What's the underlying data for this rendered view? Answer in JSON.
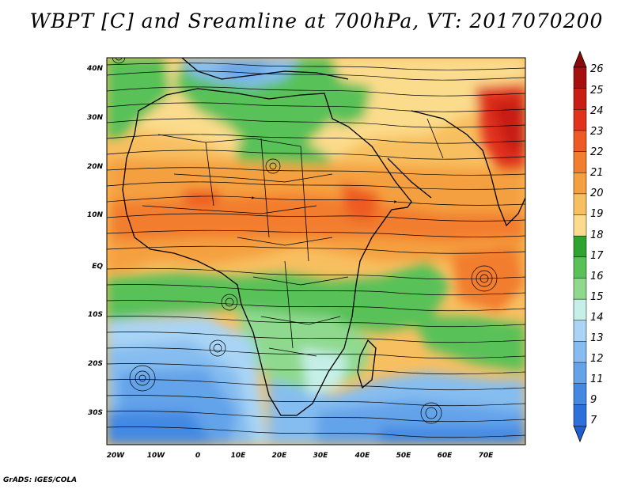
{
  "title": "WBPT [C] and Sreamline at 700hPa, VT: 2017070200",
  "credit": "GrADS: IGES/COLA",
  "lat_labels": [
    "40N",
    "30N",
    "20N",
    "10N",
    "EQ",
    "10S",
    "20S",
    "30S"
  ],
  "lon_labels": [
    "20W",
    "10W",
    "0",
    "10E",
    "20E",
    "30E",
    "40E",
    "50E",
    "60E",
    "70E"
  ],
  "colorbar": {
    "labels": [
      "26",
      "25",
      "24",
      "23",
      "22",
      "21",
      "20",
      "19",
      "18",
      "17",
      "16",
      "15",
      "14",
      "13",
      "12",
      "11",
      "9",
      "7"
    ],
    "colors": [
      "#a50f0f",
      "#c81e14",
      "#e0321c",
      "#ee5a22",
      "#f27d2e",
      "#f5a040",
      "#f8bf60",
      "#fbdb8c",
      "#2fa32f",
      "#58c158",
      "#8fd98f",
      "#c6efe7",
      "#a9d4f5",
      "#86bdf0",
      "#64a3ea",
      "#4389e3",
      "#2b70db"
    ]
  },
  "map": {
    "lon_range": [
      -21,
      80
    ],
    "lat_range": [
      -36,
      45
    ]
  }
}
